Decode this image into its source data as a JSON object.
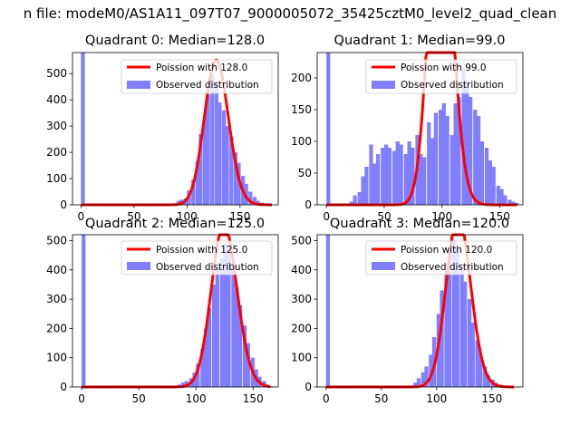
{
  "figure": {
    "suptitle": "n file: modeM0/AS1A11_097T07_9000005072_35425cztM0_level2_quad_clean"
  },
  "chart_data": [
    {
      "type": "bar",
      "title": "Quadrant 0: Median=128.0",
      "xlim": [
        -8,
        186
      ],
      "ylim": [
        0,
        580
      ],
      "xticks": [
        0,
        50,
        100,
        150
      ],
      "yticks": [
        0,
        100,
        200,
        300,
        400,
        500
      ],
      "legend": {
        "placement": "top-right",
        "entries": [
          "Poission with 128.0",
          "Observed distribution"
        ]
      },
      "bar_color": "#7f7fff",
      "line_color": "#ff0000",
      "series": [
        {
          "name": "Observed distribution",
          "kind": "histogram",
          "bin_width": 3.6,
          "bins": [
            [
              0,
              580
            ],
            [
              86,
              5
            ],
            [
              90,
              15
            ],
            [
              93,
              20
            ],
            [
              97,
              25
            ],
            [
              100,
              55
            ],
            [
              104,
              95
            ],
            [
              108,
              165
            ],
            [
              111,
              270
            ],
            [
              115,
              340
            ],
            [
              118,
              420
            ],
            [
              122,
              500
            ],
            [
              126,
              470
            ],
            [
              129,
              390
            ],
            [
              133,
              360
            ],
            [
              136,
              300
            ],
            [
              140,
              260
            ],
            [
              144,
              200
            ],
            [
              147,
              160
            ],
            [
              151,
              110
            ],
            [
              154,
              80
            ],
            [
              158,
              50
            ],
            [
              162,
              30
            ],
            [
              165,
              15
            ],
            [
              169,
              8
            ],
            [
              172,
              3
            ]
          ]
        },
        {
          "name": "Poission with 128.0",
          "kind": "line",
          "mean": 128.0,
          "x_range": [
            0,
            180
          ]
        }
      ]
    },
    {
      "type": "bar",
      "title": "Quadrant 1: Median=99.0",
      "xlim": [
        -8,
        170
      ],
      "ylim": [
        0,
        240
      ],
      "xticks": [
        0,
        50,
        100,
        150
      ],
      "yticks": [
        0,
        50,
        100,
        150,
        200
      ],
      "legend": {
        "placement": "top-right",
        "entries": [
          "Poission with 99.0",
          "Observed distribution"
        ]
      },
      "bar_color": "#7f7fff",
      "line_color": "#ff0000",
      "series": [
        {
          "name": "Observed distribution",
          "kind": "histogram",
          "bin_width": 3.3,
          "bins": [
            [
              0,
              240
            ],
            [
              20,
              5
            ],
            [
              23,
              15
            ],
            [
              27,
              20
            ],
            [
              30,
              45
            ],
            [
              33,
              60
            ],
            [
              37,
              95
            ],
            [
              40,
              65
            ],
            [
              43,
              80
            ],
            [
              47,
              90
            ],
            [
              50,
              95
            ],
            [
              53,
              90
            ],
            [
              57,
              85
            ],
            [
              60,
              100
            ],
            [
              63,
              95
            ],
            [
              67,
              80
            ],
            [
              70,
              100
            ],
            [
              73,
              90
            ],
            [
              77,
              110
            ],
            [
              80,
              80
            ],
            [
              83,
              75
            ],
            [
              87,
              130
            ],
            [
              90,
              105
            ],
            [
              93,
              145
            ],
            [
              97,
              150
            ],
            [
              100,
              160
            ],
            [
              103,
              140
            ],
            [
              107,
              110
            ],
            [
              110,
              160
            ],
            [
              113,
              170
            ],
            [
              117,
              215
            ],
            [
              120,
              190
            ],
            [
              123,
              170
            ],
            [
              127,
              150
            ],
            [
              130,
              140
            ],
            [
              133,
              100
            ],
            [
              137,
              90
            ],
            [
              140,
              70
            ],
            [
              143,
              60
            ],
            [
              147,
              30
            ],
            [
              150,
              25
            ],
            [
              153,
              15
            ],
            [
              157,
              8
            ],
            [
              160,
              5
            ],
            [
              163,
              3
            ]
          ]
        },
        {
          "name": "Poission with 99.0",
          "kind": "line",
          "mean": 99.0,
          "x_range": [
            0,
            165
          ]
        }
      ]
    },
    {
      "type": "bar",
      "title": "Quadrant 2: Median=125.0",
      "xlim": [
        -8,
        172
      ],
      "ylim": [
        0,
        520
      ],
      "xticks": [
        0,
        50,
        100,
        150
      ],
      "yticks": [
        0,
        100,
        200,
        300,
        400,
        500
      ],
      "legend": {
        "placement": "top-right",
        "entries": [
          "Poission with 125.0",
          "Observed distribution"
        ]
      },
      "bar_color": "#7f7fff",
      "line_color": "#ff0000",
      "series": [
        {
          "name": "Observed distribution",
          "kind": "histogram",
          "bin_width": 3.4,
          "bins": [
            [
              0,
              520
            ],
            [
              80,
              3
            ],
            [
              84,
              8
            ],
            [
              87,
              15
            ],
            [
              90,
              20
            ],
            [
              94,
              30
            ],
            [
              97,
              50
            ],
            [
              100,
              80
            ],
            [
              104,
              130
            ],
            [
              107,
              200
            ],
            [
              110,
              270
            ],
            [
              114,
              350
            ],
            [
              117,
              410
            ],
            [
              121,
              440
            ],
            [
              124,
              490
            ],
            [
              127,
              470
            ],
            [
              131,
              400
            ],
            [
              134,
              340
            ],
            [
              137,
              280
            ],
            [
              141,
              210
            ],
            [
              144,
              150
            ],
            [
              148,
              100
            ],
            [
              151,
              60
            ],
            [
              154,
              35
            ],
            [
              158,
              20
            ],
            [
              161,
              8
            ],
            [
              164,
              3
            ]
          ]
        },
        {
          "name": "Poission with 125.0",
          "kind": "line",
          "mean": 125.0,
          "x_range": [
            0,
            165
          ]
        }
      ]
    },
    {
      "type": "bar",
      "title": "Quadrant 3: Median=120.0",
      "xlim": [
        -8,
        178
      ],
      "ylim": [
        0,
        520
      ],
      "xticks": [
        0,
        50,
        100,
        150
      ],
      "yticks": [
        0,
        100,
        200,
        300,
        400,
        500
      ],
      "legend": {
        "placement": "top-right",
        "entries": [
          "Poission with 120.0",
          "Observed distribution"
        ]
      },
      "bar_color": "#7f7fff",
      "line_color": "#ff0000",
      "series": [
        {
          "name": "Observed distribution",
          "kind": "histogram",
          "bin_width": 3.5,
          "bins": [
            [
              0,
              520
            ],
            [
              75,
              5
            ],
            [
              79,
              15
            ],
            [
              82,
              30
            ],
            [
              86,
              50
            ],
            [
              89,
              70
            ],
            [
              93,
              110
            ],
            [
              96,
              170
            ],
            [
              100,
              250
            ],
            [
              103,
              330
            ],
            [
              107,
              400
            ],
            [
              110,
              460
            ],
            [
              114,
              500
            ],
            [
              117,
              470
            ],
            [
              121,
              420
            ],
            [
              124,
              360
            ],
            [
              128,
              300
            ],
            [
              131,
              220
            ],
            [
              135,
              160
            ],
            [
              138,
              110
            ],
            [
              142,
              70
            ],
            [
              145,
              40
            ],
            [
              149,
              25
            ],
            [
              152,
              15
            ],
            [
              156,
              8
            ],
            [
              159,
              4
            ],
            [
              163,
              2
            ]
          ]
        },
        {
          "name": "Poission with 120.0",
          "kind": "line",
          "mean": 120.0,
          "x_range": [
            0,
            170
          ]
        }
      ]
    }
  ]
}
